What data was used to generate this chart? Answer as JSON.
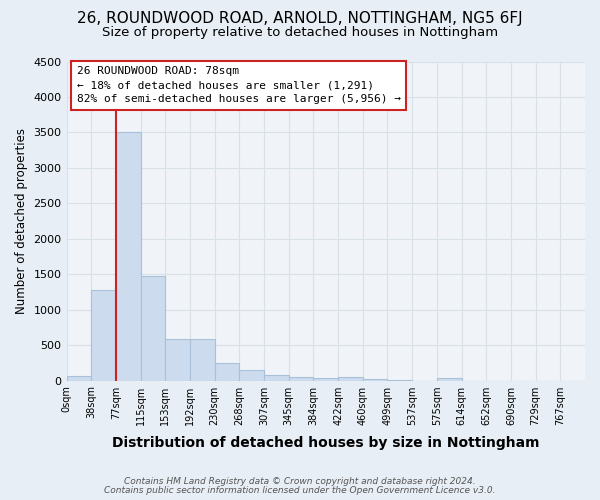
{
  "title": "26, ROUNDWOOD ROAD, ARNOLD, NOTTINGHAM, NG5 6FJ",
  "subtitle": "Size of property relative to detached houses in Nottingham",
  "xlabel": "Distribution of detached houses by size in Nottingham",
  "ylabel": "Number of detached properties",
  "footnote1": "Contains HM Land Registry data © Crown copyright and database right 2024.",
  "footnote2": "Contains public sector information licensed under the Open Government Licence v3.0.",
  "bar_labels": [
    "0sqm",
    "38sqm",
    "77sqm",
    "115sqm",
    "153sqm",
    "192sqm",
    "230sqm",
    "268sqm",
    "307sqm",
    "345sqm",
    "384sqm",
    "422sqm",
    "460sqm",
    "499sqm",
    "537sqm",
    "575sqm",
    "614sqm",
    "652sqm",
    "690sqm",
    "729sqm",
    "767sqm"
  ],
  "bar_values": [
    60,
    1280,
    3500,
    1470,
    580,
    580,
    250,
    145,
    85,
    50,
    35,
    50,
    25,
    5,
    0,
    30,
    0,
    0,
    0,
    0,
    0
  ],
  "bar_color": "#ccdcee",
  "bar_edge_color": "#aac0d8",
  "property_bin_index": 2,
  "annotation_line1": "26 ROUNDWOOD ROAD: 78sqm",
  "annotation_line2": "← 18% of detached houses are smaller (1,291)",
  "annotation_line3": "82% of semi-detached houses are larger (5,956) →",
  "annotation_box_facecolor": "#ffffff",
  "annotation_box_edgecolor": "#cc2222",
  "red_line_color": "#cc2222",
  "ylim": [
    0,
    4500
  ],
  "yticks": [
    0,
    500,
    1000,
    1500,
    2000,
    2500,
    3000,
    3500,
    4000,
    4500
  ],
  "bg_color": "#e8eef5",
  "plot_bg_color": "#f0f4f8",
  "grid_color": "#d8e0e8",
  "title_fontsize": 11,
  "subtitle_fontsize": 9.5,
  "ylabel_fontsize": 8.5,
  "xlabel_fontsize": 10,
  "footnote_fontsize": 6.5
}
